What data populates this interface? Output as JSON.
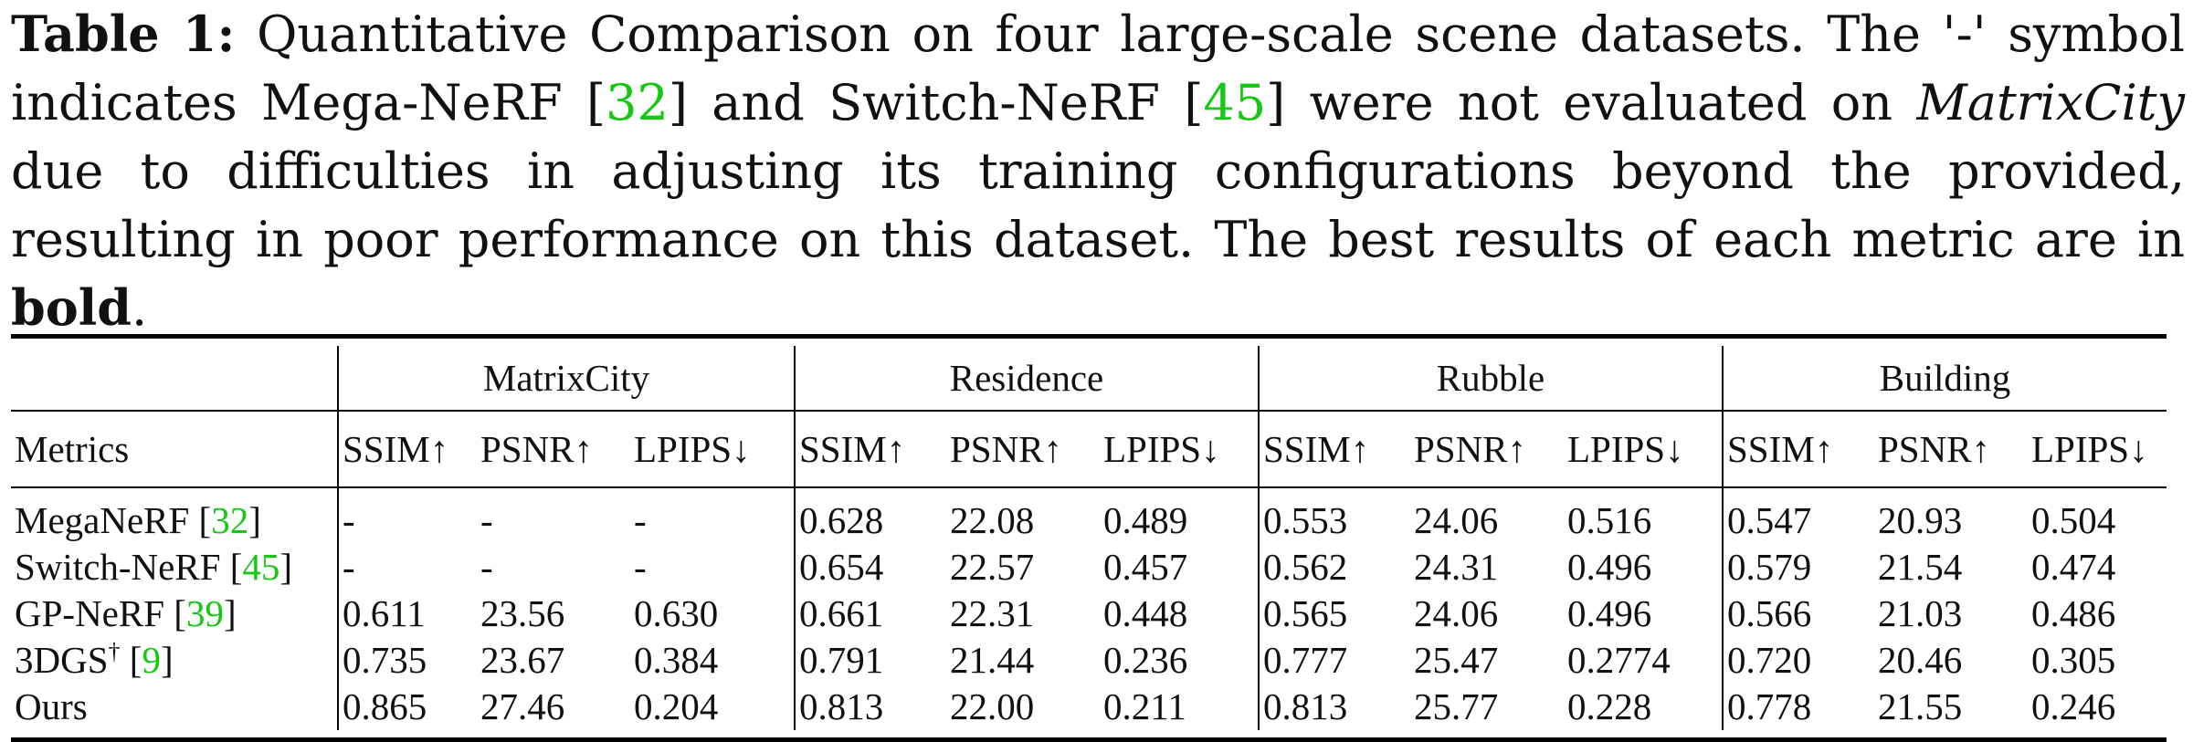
{
  "caption": {
    "label": "Table 1:",
    "part1": " Quantitative Comparison on four large-scale scene datasets. The '-' symbol indicates Mega-NeRF [",
    "ref1": "32",
    "part2": "] and Switch-NeRF [",
    "ref2": "45",
    "part3": "] were not evaluated on ",
    "dataset_italic": "MatrixCity",
    "part4": " due to difficulties in adjusting its training configurations beyond the provided, resulting in poor performance on this dataset. The best results of each metric are in ",
    "bold_word": "bold",
    "part5": "."
  },
  "table": {
    "groups": [
      "MatrixCity",
      "Residence",
      "Rubble",
      "Building"
    ],
    "metrics_label": "Metrics",
    "metric_headers": [
      "SSIM↑",
      "PSNR↑",
      "LPIPS↓"
    ],
    "rows": [
      {
        "name": "MegaNeRF [",
        "ref": "32",
        "name_end": "]",
        "sup": "",
        "values": [
          "-",
          "-",
          "-",
          "0.628",
          "22.08",
          "0.489",
          "0.553",
          "24.06",
          "0.516",
          "0.547",
          "20.93",
          "0.504"
        ],
        "bold": [
          false,
          false,
          false,
          false,
          false,
          false,
          false,
          false,
          false,
          false,
          false,
          false
        ]
      },
      {
        "name": "Switch-NeRF [",
        "ref": "45",
        "name_end": "]",
        "sup": "",
        "values": [
          "-",
          "-",
          "-",
          "0.654",
          "22.57",
          "0.457",
          "0.562",
          "24.31",
          "0.496",
          "0.579",
          "21.54",
          "0.474"
        ],
        "bold": [
          false,
          false,
          false,
          false,
          true,
          false,
          false,
          false,
          false,
          false,
          false,
          false
        ]
      },
      {
        "name": "GP-NeRF [",
        "ref": "39",
        "name_end": "]",
        "sup": "",
        "values": [
          "0.611",
          "23.56",
          "0.630",
          "0.661",
          "22.31",
          "0.448",
          "0.565",
          "24.06",
          "0.496",
          "0.566",
          "21.03",
          "0.486"
        ],
        "bold": [
          false,
          false,
          false,
          false,
          false,
          false,
          false,
          false,
          false,
          false,
          false,
          false
        ]
      },
      {
        "name": "3DGS",
        "sup": "†",
        "name_mid": " [",
        "ref": "9",
        "name_end": "]",
        "values": [
          "0.735",
          "23.67",
          "0.384",
          "0.791",
          "21.44",
          "0.236",
          "0.777",
          "25.47",
          "0.2774",
          "0.720",
          "20.46",
          "0.305"
        ],
        "bold": [
          false,
          false,
          false,
          false,
          false,
          false,
          false,
          false,
          false,
          false,
          false,
          false
        ]
      },
      {
        "name": "Ours",
        "ref": "",
        "name_end": "",
        "sup": "",
        "values": [
          "0.865",
          "27.46",
          "0.204",
          "0.813",
          "22.00",
          "0.211",
          "0.813",
          "25.77",
          "0.228",
          "0.778",
          "21.55",
          "0.246"
        ],
        "bold": [
          true,
          true,
          true,
          true,
          false,
          true,
          true,
          true,
          true,
          true,
          true,
          true
        ]
      }
    ]
  }
}
